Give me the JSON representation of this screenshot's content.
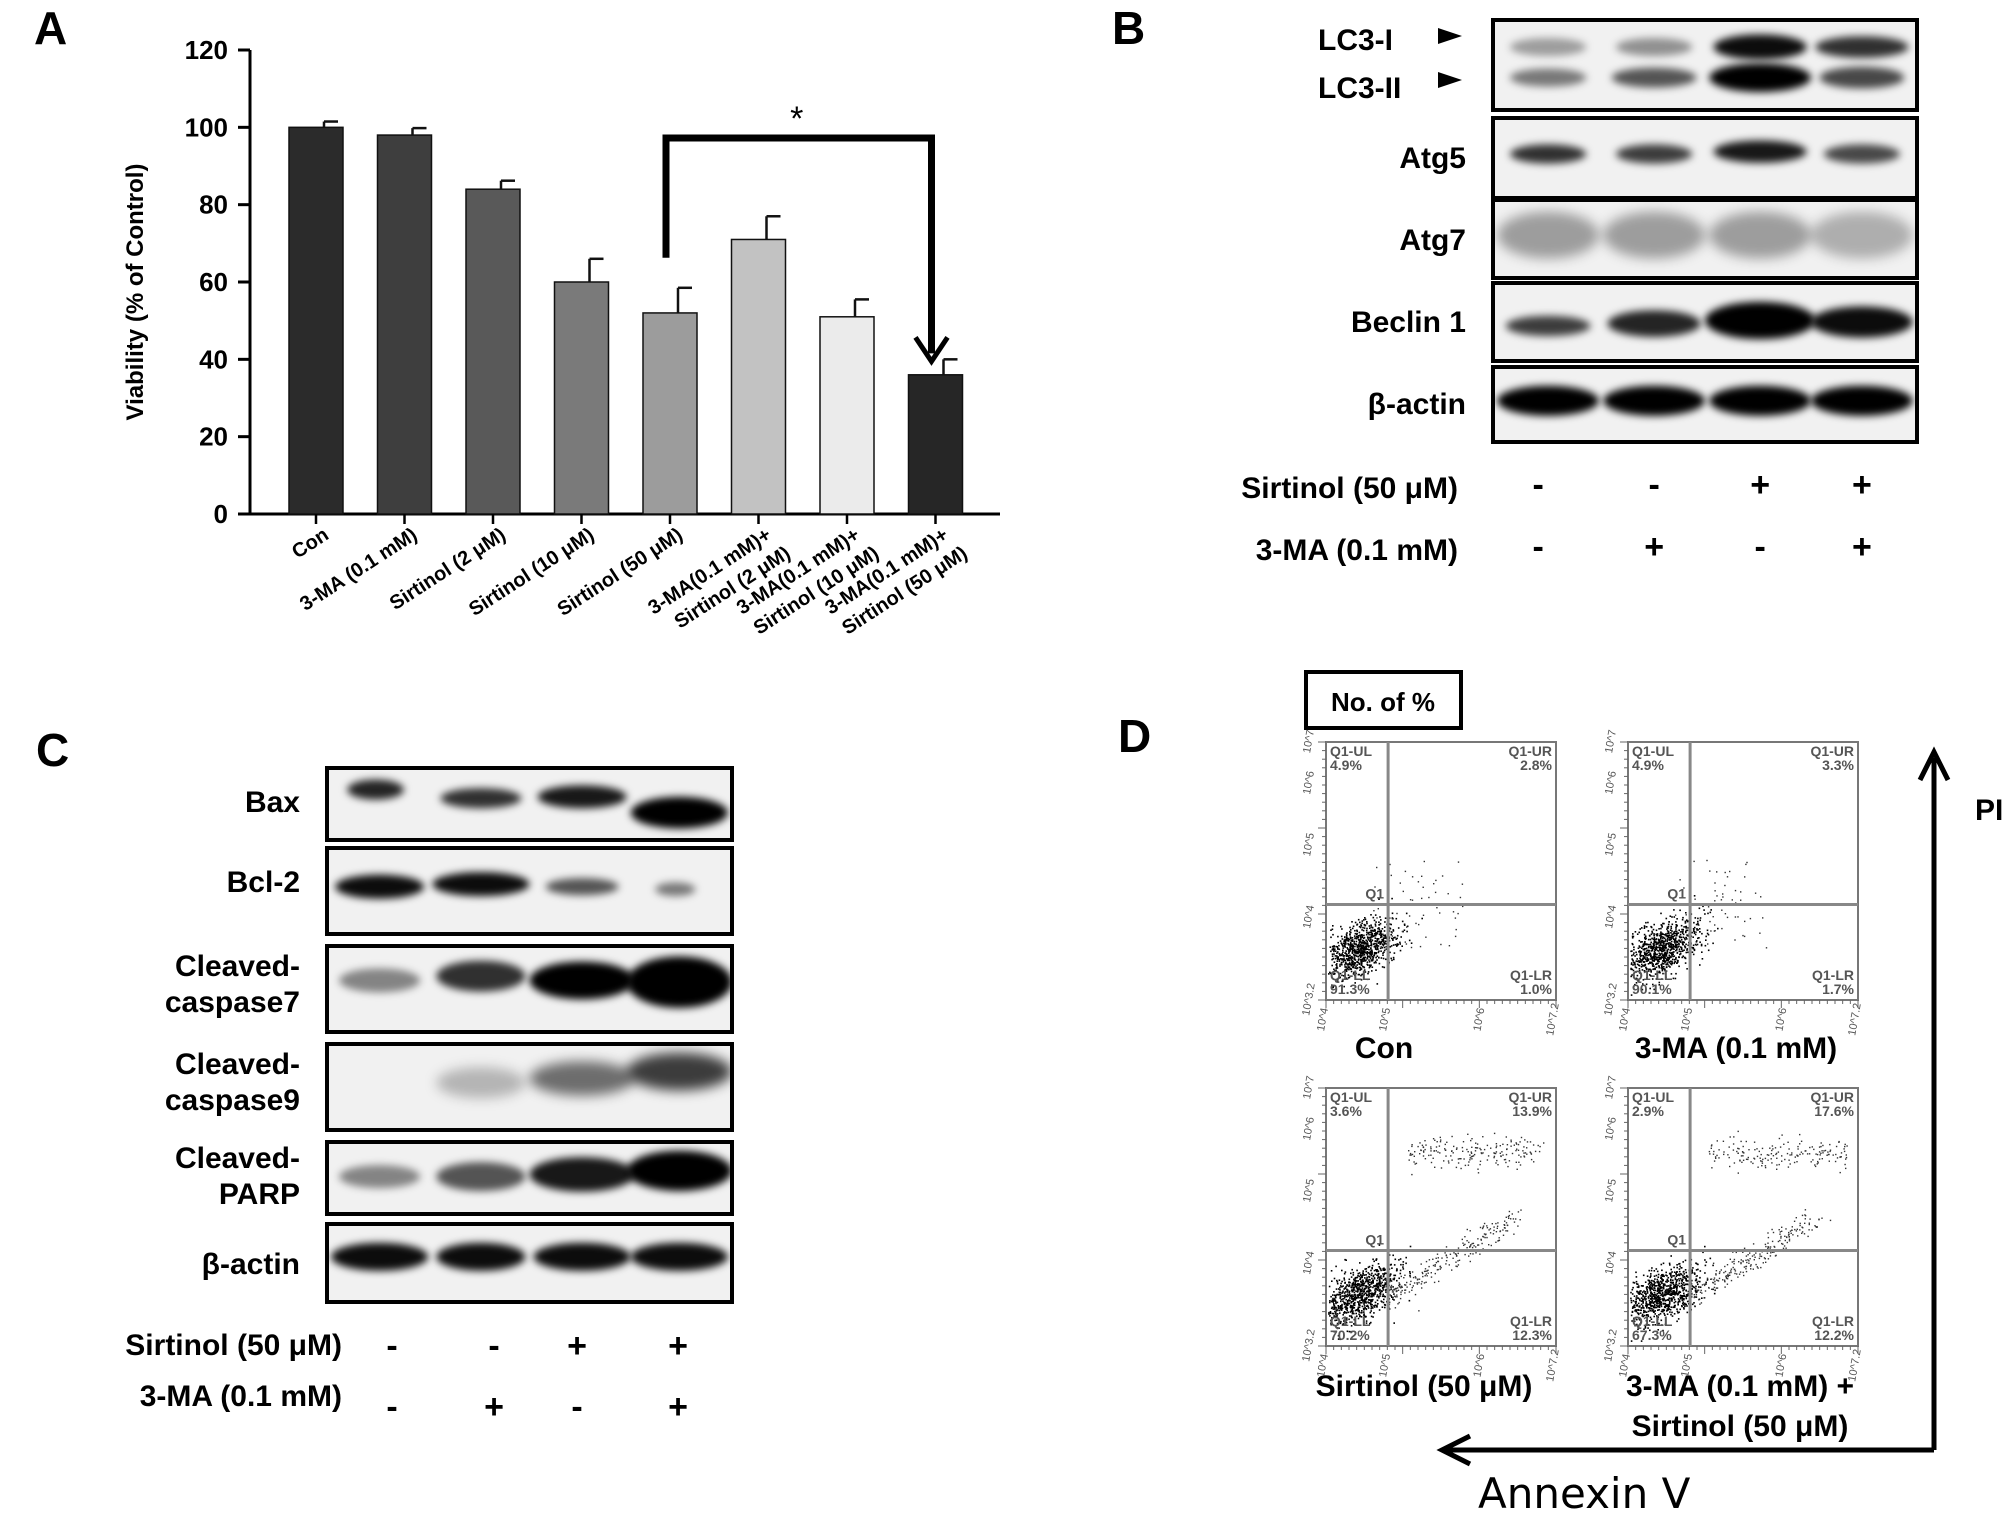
{
  "panels": {
    "A": "A",
    "B": "B",
    "C": "C",
    "D": "D"
  },
  "chart_data": {
    "type": "bar",
    "ylabel": "Viability (% of Control)",
    "ylim": [
      0,
      120
    ],
    "yticks": [
      "0",
      "20",
      "40",
      "60",
      "80",
      "100",
      "120"
    ],
    "categories": [
      "Con",
      "3-MA (0.1 mM)",
      "Sirtinol (2 μM)",
      "Sirtinol (10 μM)",
      "Sirtinol (50 μM)",
      "3-MA(0.1 mM)+ Sirtinol (2 μM)",
      "3-MA(0.1 mM)+ Sirtinol (10 μM)",
      "3-MA(0.1 mM)+ Sirtinol (50 μM)"
    ],
    "category_lines": [
      [
        "Con"
      ],
      [
        "3-MA (0.1 mM)"
      ],
      [
        "Sirtinol (2 μM)"
      ],
      [
        "Sirtinol (10 μM)"
      ],
      [
        "Sirtinol (50 μM)"
      ],
      [
        "3-MA(0.1 mM)+",
        "Sirtinol (2 μM)"
      ],
      [
        "3-MA(0.1 mM)+",
        "Sirtinol (10 μM)"
      ],
      [
        "3-MA(0.1 mM)+",
        "Sirtinol (50 μM)"
      ]
    ],
    "values": [
      100,
      98,
      84,
      60,
      52,
      71,
      51,
      36
    ],
    "errors": [
      1.5,
      1.8,
      2.2,
      6,
      6.5,
      6,
      4.5,
      4
    ],
    "bar_colors": [
      "#2b2b2b",
      "#3e3e3e",
      "#595959",
      "#7a7a7a",
      "#9c9c9c",
      "#c2c2c2",
      "#ebebeb",
      "#262626"
    ],
    "significance": {
      "from": 4,
      "to": 7,
      "label": "*"
    }
  },
  "blotB": {
    "rows": [
      "LC3-I",
      "LC3-II",
      "Atg5",
      "Atg7",
      "Beclin 1",
      "β-actin"
    ],
    "conditions": [
      {
        "label": "Sirtinol (50 μM)",
        "signs": [
          "-",
          "-",
          "+",
          "+"
        ]
      },
      {
        "label": "3-MA (0.1 mM)",
        "signs": [
          "-",
          "+",
          "-",
          "+"
        ]
      }
    ]
  },
  "blotC": {
    "rows": [
      [
        "Bax"
      ],
      [
        "Bcl-2"
      ],
      [
        "Cleaved-",
        "caspase7"
      ],
      [
        "Cleaved-",
        "caspase9"
      ],
      [
        "Cleaved-",
        "PARP"
      ],
      [
        "β-actin"
      ]
    ],
    "conditions": [
      {
        "label": "Sirtinol (50 μM)",
        "signs": [
          "-",
          "-",
          "+",
          "+"
        ]
      },
      {
        "label": "3-MA (0.1 mM)",
        "signs": [
          "-",
          "+",
          "-",
          "+"
        ]
      }
    ]
  },
  "flowD": {
    "legend": "No. of %",
    "x_axis": "Annexin V",
    "y_axis": "PI",
    "ticks_x": [
      "10^4",
      "10^5",
      "10^6",
      "10^7.2"
    ],
    "ticks_y": [
      "10^3.2",
      "10^4",
      "10^5",
      "10^6",
      "10^7"
    ],
    "plots": [
      {
        "caption": [
          "Con"
        ],
        "UL": "4.9%",
        "UR": "2.8%",
        "LL": "91.3%",
        "LR": "1.0%"
      },
      {
        "caption": [
          "3-MA (0.1 mM)"
        ],
        "UL": "4.9%",
        "UR": "3.3%",
        "LL": "90.1%",
        "LR": "1.7%"
      },
      {
        "caption": [
          "Sirtinol (50 μM)"
        ],
        "UL": "3.6%",
        "UR": "13.9%",
        "LL": "70.2%",
        "LR": "12.3%"
      },
      {
        "caption": [
          "3-MA (0.1 mM) +",
          "Sirtinol (50 μM)"
        ],
        "UL": "2.9%",
        "UR": "17.6%",
        "LL": "67.3%",
        "LR": "12.2%"
      }
    ],
    "quad_names": {
      "UL": "Q1-UL",
      "UR": "Q1-UR",
      "LL": "Q1-LL",
      "LR": "Q1-LR",
      "center": "Q1"
    }
  }
}
